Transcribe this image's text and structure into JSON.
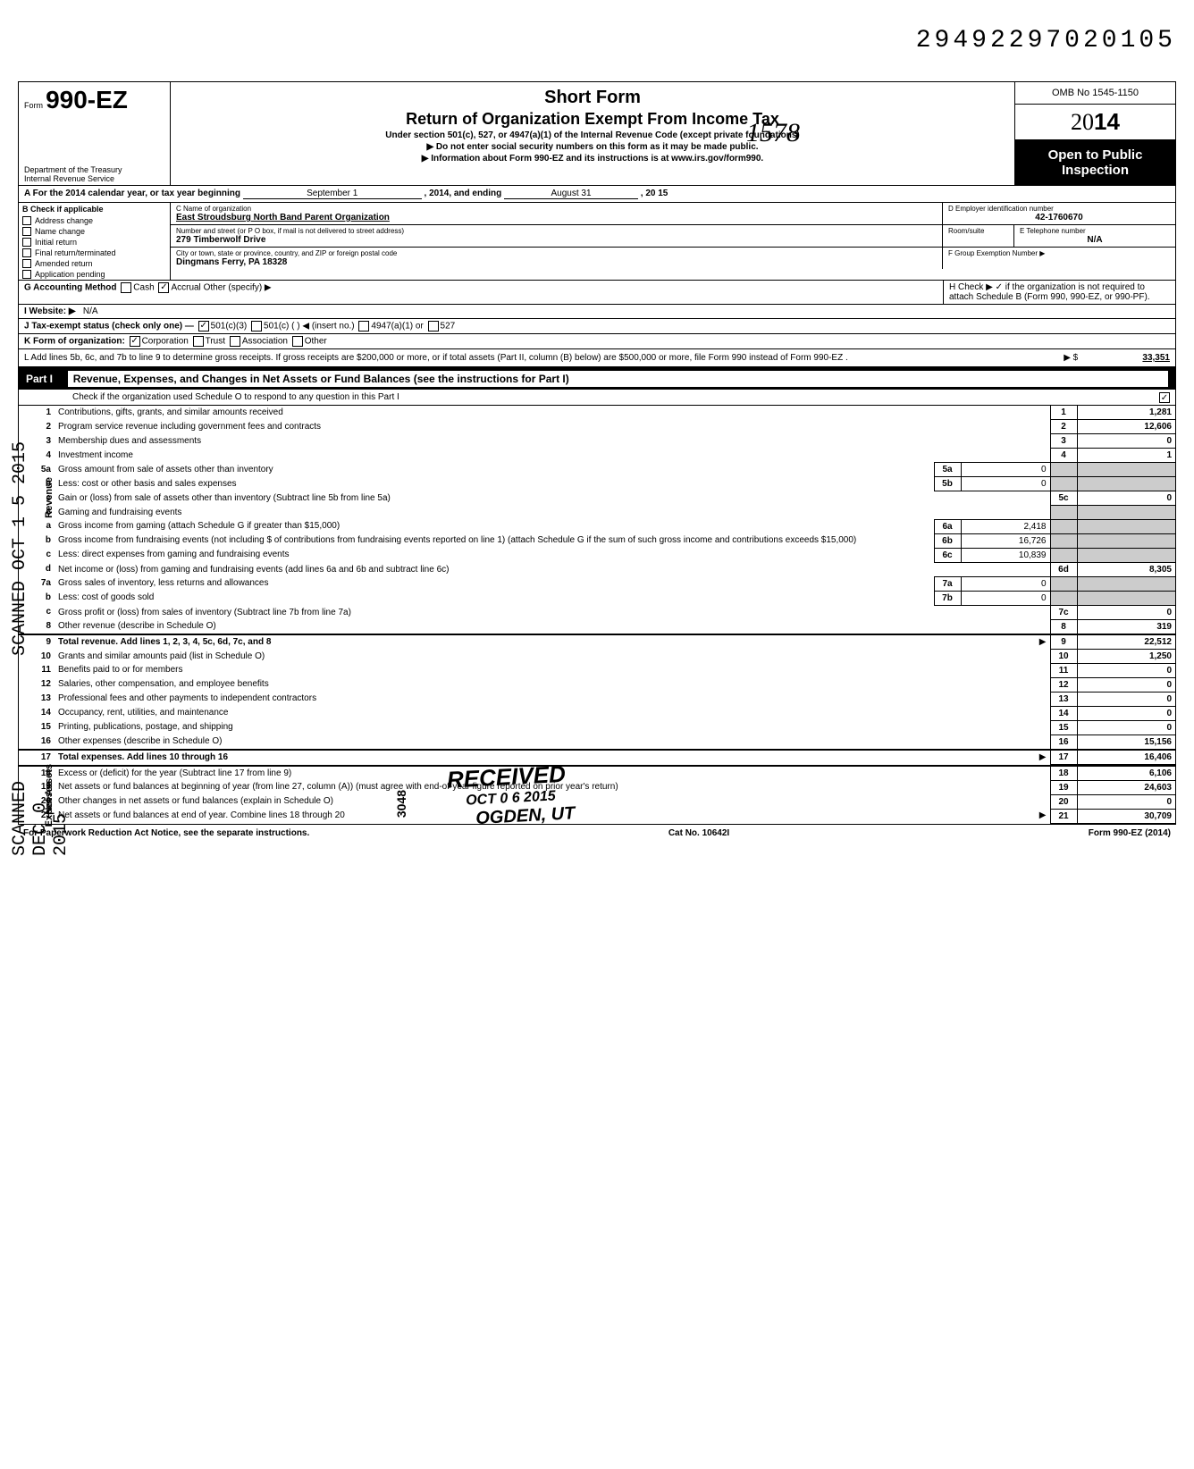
{
  "page_id": "29492297020105",
  "header": {
    "form_prefix": "Form",
    "form_number": "990-EZ",
    "title1": "Short Form",
    "title2": "Return of Organization Exempt From Income Tax",
    "subtitle1": "Under section 501(c), 527, or 4947(a)(1) of the Internal Revenue Code (except private foundations)",
    "subtitle2": "▶ Do not enter social security numbers on this form as it may be made public.",
    "subtitle3": "▶ Information about Form 990-EZ and its instructions is at www.irs.gov/form990.",
    "dept": "Department of the Treasury\nInternal Revenue Service",
    "omb": "OMB No 1545-1150",
    "year": "2014",
    "open_public": "Open to Public Inspection",
    "stamp_1578": "1578"
  },
  "lineA": {
    "prefix": "A For the 2014 calendar year, or tax year beginning",
    "begin": "September 1",
    "mid": ", 2014, and ending",
    "end": "August 31",
    "endyear": ", 20  15"
  },
  "boxB": {
    "title": "B  Check if applicable",
    "opts": [
      "Address change",
      "Name change",
      "Initial return",
      "Final return/terminated",
      "Amended return",
      "Application pending"
    ]
  },
  "boxC": {
    "label_name": "C Name of organization",
    "name": "East Stroudsburg North Band Parent Organization",
    "label_addr": "Number and street (or P O  box, if mail is not delivered to street address)",
    "room_label": "Room/suite",
    "addr": "279 Timberwolf Drive",
    "label_city": "City or town, state or province, country, and ZIP or foreign postal code",
    "city": "Dingmans Ferry, PA 18328"
  },
  "boxD": {
    "label": "D Employer identification number",
    "value": "42-1760670"
  },
  "boxE": {
    "label": "E Telephone number",
    "value": "N/A"
  },
  "boxF": {
    "label": "F Group Exemption Number ▶",
    "value": ""
  },
  "lineG": {
    "label": "G Accounting Method",
    "cash": "Cash",
    "accrual": "Accrual",
    "other": "Other (specify) ▶"
  },
  "lineH": {
    "text1": "H Check ▶",
    "text2": " if the organization is not required to attach Schedule B (Form 990, 990-EZ, or 990-PF)."
  },
  "lineI": {
    "label": "I  Website: ▶",
    "value": "N/A"
  },
  "lineJ": {
    "label": "J Tax-exempt status (check only one) —",
    "o1": "501(c)(3)",
    "o2": "501(c) (",
    "o2b": ") ◀ (insert no.)",
    "o3": "4947(a)(1) or",
    "o4": "527"
  },
  "lineK": {
    "label": "K Form of organization:",
    "o1": "Corporation",
    "o2": "Trust",
    "o3": "Association",
    "o4": "Other"
  },
  "lineL": {
    "text": "L Add lines 5b, 6c, and 7b to line 9 to determine gross receipts. If gross receipts are $200,000 or more, or if total assets (Part II, column (B) below) are $500,000 or more, file Form 990 instead of Form 990-EZ .",
    "arrow": "▶    $",
    "value": "33,351"
  },
  "part1": {
    "header": "Part I",
    "title": "Revenue, Expenses, and Changes in Net Assets or Fund Balances (see the instructions for Part I)",
    "sub": "Check if the organization used Schedule O to respond to any question in this Part I",
    "sub_checked": "✓"
  },
  "stamps": {
    "scanned1": "SCANNED OCT 1 5 2015",
    "scanned2": "SCANNED DEC 0 2015",
    "received": "RECEIVED",
    "received_date": "OCT 0 6 2015",
    "ogden": "OGDEN, UT",
    "num3048": "3048"
  },
  "sections": {
    "revenue": "Revenue",
    "expenses": "Expenses",
    "netassets": "Net Assets"
  },
  "lines": [
    {
      "n": "1",
      "d": "Contributions, gifts, grants, and similar amounts received",
      "c": "1",
      "v": "1,281"
    },
    {
      "n": "2",
      "d": "Program service revenue including government fees and contracts",
      "c": "2",
      "v": "12,606"
    },
    {
      "n": "3",
      "d": "Membership dues and assessments",
      "c": "3",
      "v": "0"
    },
    {
      "n": "4",
      "d": "Investment income",
      "c": "4",
      "v": "1"
    }
  ],
  "line5": {
    "a_n": "5a",
    "a_d": "Gross amount from sale of assets other than inventory",
    "a_box": "5a",
    "a_v": "0",
    "b_n": "b",
    "b_d": "Less: cost or other basis and sales expenses",
    "b_box": "5b",
    "b_v": "0",
    "c_n": "c",
    "c_d": "Gain or (loss) from sale of assets other than inventory (Subtract line 5b from line 5a)",
    "c_c": "5c",
    "c_v": "0"
  },
  "line6": {
    "hdr_n": "6",
    "hdr_d": "Gaming and fundraising events",
    "a_n": "a",
    "a_d": "Gross income from gaming (attach Schedule G if greater than $15,000)",
    "a_box": "6a",
    "a_v": "2,418",
    "b_n": "b",
    "b_d": "Gross income from fundraising events (not including  $                    of contributions from fundraising events reported on line 1) (attach Schedule G if the sum of such gross income and contributions exceeds $15,000)",
    "b_box": "6b",
    "b_v": "16,726",
    "c_n": "c",
    "c_d": "Less: direct expenses from gaming and fundraising events",
    "c_box": "6c",
    "c_v": "10,839",
    "d_n": "d",
    "d_d": "Net income or (loss) from gaming and fundraising events (add lines 6a and 6b and subtract line 6c)",
    "d_c": "6d",
    "d_v": "8,305"
  },
  "line7": {
    "a_n": "7a",
    "a_d": "Gross sales of inventory, less returns and allowances",
    "a_box": "7a",
    "a_v": "0",
    "b_n": "b",
    "b_d": "Less: cost of goods sold",
    "b_box": "7b",
    "b_v": "0",
    "c_n": "c",
    "c_d": "Gross profit or (loss) from sales of inventory (Subtract line 7b from line 7a)",
    "c_c": "7c",
    "c_v": "0"
  },
  "line8": {
    "n": "8",
    "d": "Other revenue (describe in Schedule O)",
    "c": "8",
    "v": "319"
  },
  "line9": {
    "n": "9",
    "d": "Total revenue. Add lines 1, 2, 3, 4, 5c, 6d, 7c, and 8",
    "arrow": "▶",
    "c": "9",
    "v": "22,512"
  },
  "expense_lines": [
    {
      "n": "10",
      "d": "Grants and similar amounts paid (list in Schedule O)",
      "c": "10",
      "v": "1,250"
    },
    {
      "n": "11",
      "d": "Benefits paid to or for members",
      "c": "11",
      "v": "0"
    },
    {
      "n": "12",
      "d": "Salaries, other compensation, and employee benefits",
      "c": "12",
      "v": "0"
    },
    {
      "n": "13",
      "d": "Professional fees and other payments to independent contractors",
      "c": "13",
      "v": "0"
    },
    {
      "n": "14",
      "d": "Occupancy, rent, utilities, and maintenance",
      "c": "14",
      "v": "0"
    },
    {
      "n": "15",
      "d": "Printing, publications, postage, and shipping",
      "c": "15",
      "v": "0"
    },
    {
      "n": "16",
      "d": "Other expenses (describe in Schedule O)",
      "c": "16",
      "v": "15,156"
    }
  ],
  "line17": {
    "n": "17",
    "d": "Total expenses. Add lines 10 through 16",
    "arrow": "▶",
    "c": "17",
    "v": "16,406"
  },
  "netasset_lines": [
    {
      "n": "18",
      "d": "Excess or (deficit) for the year (Subtract line 17 from line 9)",
      "c": "18",
      "v": "6,106"
    },
    {
      "n": "19",
      "d": "Net assets or fund balances at beginning of year (from line 27, column (A)) (must agree with end-of-year figure reported on prior year's return)",
      "c": "19",
      "v": "24,603"
    },
    {
      "n": "20",
      "d": "Other changes in net assets or fund balances (explain in Schedule O)",
      "c": "20",
      "v": "0"
    },
    {
      "n": "21",
      "d": "Net assets or fund balances at end of year. Combine lines 18 through 20",
      "arrow": "▶",
      "c": "21",
      "v": "30,709"
    }
  ],
  "footer": {
    "left": "For Paperwork Reduction Act Notice, see the separate instructions.",
    "mid": "Cat No. 10642I",
    "right": "Form 990-EZ (2014)"
  }
}
